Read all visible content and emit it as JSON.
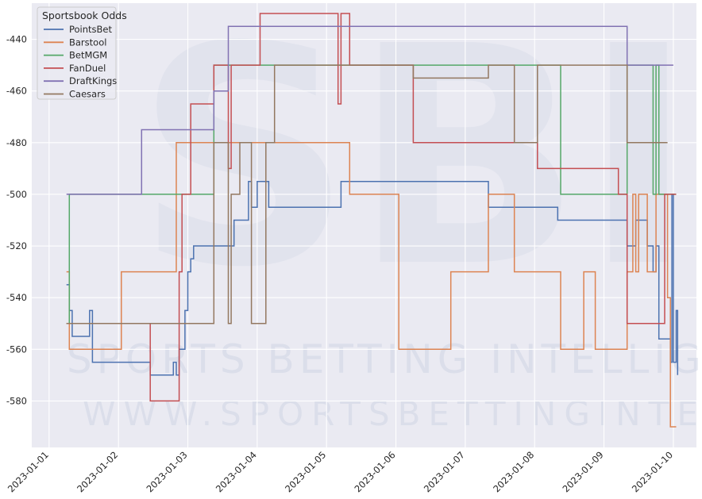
{
  "chart_data": {
    "type": "line",
    "step": true,
    "legend": {
      "title": "Sportsbook Odds",
      "placement": "top-left"
    },
    "watermark": {
      "logo_text": "SBI",
      "line1": "SPORTS BETTING INTELLIGENCE",
      "line2": "WWW.SPORTSBETTINGINTEL.COM"
    },
    "grid": true,
    "background_color": "#eaeaf2",
    "xlim": [
      "2023-01-00 18:00",
      "2023-01-10 08:00"
    ],
    "ylim": [
      -598,
      -426
    ],
    "x_ticks": [
      "2023-01-01",
      "2023-01-02",
      "2023-01-03",
      "2023-01-04",
      "2023-01-05",
      "2023-01-06",
      "2023-01-07",
      "2023-01-08",
      "2023-01-09",
      "2023-01-10"
    ],
    "y_ticks": [
      -440,
      -460,
      -480,
      -500,
      -520,
      -540,
      -560,
      -580
    ],
    "series": [
      {
        "name": "PointsBet",
        "color": "#4c72b0",
        "points": [
          [
            "2023-01-01 06:00",
            -535
          ],
          [
            "2023-01-01 07:00",
            -545
          ],
          [
            "2023-01-01 08:00",
            -555
          ],
          [
            "2023-01-01 14:00",
            -545
          ],
          [
            "2023-01-01 15:00",
            -565
          ],
          [
            "2023-01-02 10:00",
            -565
          ],
          [
            "2023-01-02 11:00",
            -570
          ],
          [
            "2023-01-02 18:00",
            -570
          ],
          [
            "2023-01-02 19:00",
            -565
          ],
          [
            "2023-01-02 20:00",
            -570
          ],
          [
            "2023-01-02 21:00",
            -560
          ],
          [
            "2023-01-02 23:00",
            -545
          ],
          [
            "2023-01-03 00:00",
            -530
          ],
          [
            "2023-01-03 01:00",
            -525
          ],
          [
            "2023-01-03 02:00",
            -520
          ],
          [
            "2023-01-03 15:00",
            -520
          ],
          [
            "2023-01-03 16:00",
            -510
          ],
          [
            "2023-01-03 20:00",
            -510
          ],
          [
            "2023-01-03 21:00",
            -495
          ],
          [
            "2023-01-03 22:00",
            -505
          ],
          [
            "2023-01-03 23:00",
            -505
          ],
          [
            "2023-01-04 00:00",
            -495
          ],
          [
            "2023-01-04 03:00",
            -495
          ],
          [
            "2023-01-04 04:00",
            -505
          ],
          [
            "2023-01-05 04:00",
            -505
          ],
          [
            "2023-01-05 05:00",
            -495
          ],
          [
            "2023-01-07 07:00",
            -495
          ],
          [
            "2023-01-07 08:00",
            -505
          ],
          [
            "2023-01-08 07:00",
            -505
          ],
          [
            "2023-01-08 08:00",
            -510
          ],
          [
            "2023-01-09 07:00",
            -510
          ],
          [
            "2023-01-09 08:00",
            -520
          ],
          [
            "2023-01-09 10:00",
            -520
          ],
          [
            "2023-01-09 11:00",
            -510
          ],
          [
            "2023-01-09 14:00",
            -510
          ],
          [
            "2023-01-09 15:00",
            -520
          ],
          [
            "2023-01-09 17:00",
            -530
          ],
          [
            "2023-01-09 18:00",
            -520
          ],
          [
            "2023-01-09 19:00",
            -556
          ],
          [
            "2023-01-09 22:00",
            -556
          ],
          [
            "2023-01-09 23:00",
            -565
          ],
          [
            "2023-01-09 23:30",
            -500
          ],
          [
            "2023-01-10 00:00",
            -565
          ],
          [
            "2023-01-10 01:00",
            -545
          ],
          [
            "2023-01-10 01:30",
            -570
          ]
        ]
      },
      {
        "name": "Barstool",
        "color": "#dd8452",
        "points": [
          [
            "2023-01-01 06:00",
            -530
          ],
          [
            "2023-01-01 07:00",
            -560
          ],
          [
            "2023-01-02 00:00",
            -560
          ],
          [
            "2023-01-02 01:00",
            -530
          ],
          [
            "2023-01-02 08:00",
            -530
          ],
          [
            "2023-01-02 20:00",
            -480
          ],
          [
            "2023-01-05 07:00",
            -480
          ],
          [
            "2023-01-05 08:00",
            -500
          ],
          [
            "2023-01-06 00:00",
            -500
          ],
          [
            "2023-01-06 01:00",
            -560
          ],
          [
            "2023-01-06 18:00",
            -560
          ],
          [
            "2023-01-06 19:00",
            -530
          ],
          [
            "2023-01-07 07:00",
            -530
          ],
          [
            "2023-01-07 08:00",
            -500
          ],
          [
            "2023-01-07 16:00",
            -500
          ],
          [
            "2023-01-07 17:00",
            -530
          ],
          [
            "2023-01-08 08:00",
            -530
          ],
          [
            "2023-01-08 09:00",
            -560
          ],
          [
            "2023-01-08 16:00",
            -560
          ],
          [
            "2023-01-08 17:00",
            -530
          ],
          [
            "2023-01-08 20:00",
            -530
          ],
          [
            "2023-01-08 21:00",
            -560
          ],
          [
            "2023-01-09 07:00",
            -560
          ],
          [
            "2023-01-09 08:00",
            -530
          ],
          [
            "2023-01-09 10:00",
            -500
          ],
          [
            "2023-01-09 11:00",
            -530
          ],
          [
            "2023-01-09 12:00",
            -500
          ],
          [
            "2023-01-09 14:00",
            -500
          ],
          [
            "2023-01-09 15:00",
            -530
          ],
          [
            "2023-01-09 17:00",
            -530
          ],
          [
            "2023-01-09 18:00",
            -500
          ],
          [
            "2023-01-09 20:00",
            -500
          ],
          [
            "2023-01-09 22:00",
            -540
          ],
          [
            "2023-01-09 23:00",
            -590
          ],
          [
            "2023-01-10 01:00",
            -590
          ]
        ]
      },
      {
        "name": "BetMGM",
        "color": "#55a868",
        "points": [
          [
            "2023-01-01 06:00",
            -550
          ],
          [
            "2023-01-01 07:00",
            -500
          ],
          [
            "2023-01-03 08:00",
            -500
          ],
          [
            "2023-01-03 09:00",
            -450
          ],
          [
            "2023-01-08 08:00",
            -450
          ],
          [
            "2023-01-08 09:00",
            -500
          ],
          [
            "2023-01-09 07:00",
            -500
          ],
          [
            "2023-01-09 08:00",
            -450
          ],
          [
            "2023-01-09 16:00",
            -450
          ],
          [
            "2023-01-09 17:00",
            -500
          ],
          [
            "2023-01-09 18:00",
            -450
          ],
          [
            "2023-01-09 19:00",
            -500
          ],
          [
            "2023-01-10 01:00",
            -500
          ]
        ]
      },
      {
        "name": "FanDuel",
        "color": "#c44e52",
        "points": [
          [
            "2023-01-01 06:00",
            -550
          ],
          [
            "2023-01-02 10:00",
            -550
          ],
          [
            "2023-01-02 11:00",
            -580
          ],
          [
            "2023-01-02 20:00",
            -580
          ],
          [
            "2023-01-02 21:00",
            -530
          ],
          [
            "2023-01-02 22:00",
            -500
          ],
          [
            "2023-01-03 00:00",
            -500
          ],
          [
            "2023-01-03 01:00",
            -465
          ],
          [
            "2023-01-03 08:00",
            -465
          ],
          [
            "2023-01-03 09:00",
            -450
          ],
          [
            "2023-01-03 13:00",
            -450
          ],
          [
            "2023-01-03 14:00",
            -490
          ],
          [
            "2023-01-03 15:00",
            -450
          ],
          [
            "2023-01-04 00:00",
            -450
          ],
          [
            "2023-01-04 01:00",
            -430
          ],
          [
            "2023-01-05 00:00",
            -430
          ],
          [
            "2023-01-05 04:00",
            -465
          ],
          [
            "2023-01-05 05:00",
            -430
          ],
          [
            "2023-01-05 07:00",
            -430
          ],
          [
            "2023-01-05 08:00",
            -450
          ],
          [
            "2023-01-06 05:00",
            -450
          ],
          [
            "2023-01-06 06:00",
            -480
          ],
          [
            "2023-01-08 00:00",
            -480
          ],
          [
            "2023-01-08 01:00",
            -490
          ],
          [
            "2023-01-09 04:00",
            -490
          ],
          [
            "2023-01-09 05:00",
            -500
          ],
          [
            "2023-01-09 07:00",
            -500
          ],
          [
            "2023-01-09 08:00",
            -550
          ],
          [
            "2023-01-09 20:00",
            -550
          ],
          [
            "2023-01-09 21:00",
            -500
          ],
          [
            "2023-01-10 01:00",
            -500
          ]
        ]
      },
      {
        "name": "DraftKings",
        "color": "#8172b3",
        "points": [
          [
            "2023-01-01 06:00",
            -500
          ],
          [
            "2023-01-02 07:00",
            -500
          ],
          [
            "2023-01-02 08:00",
            -475
          ],
          [
            "2023-01-03 08:00",
            -475
          ],
          [
            "2023-01-03 09:00",
            -460
          ],
          [
            "2023-01-03 10:00",
            -460
          ],
          [
            "2023-01-03 14:00",
            -435
          ],
          [
            "2023-01-09 07:00",
            -435
          ],
          [
            "2023-01-09 08:00",
            -450
          ],
          [
            "2023-01-10 00:00",
            -450
          ]
        ]
      },
      {
        "name": "Caesars",
        "color": "#937860",
        "points": [
          [
            "2023-01-01 06:00",
            -550
          ],
          [
            "2023-01-03 08:00",
            -550
          ],
          [
            "2023-01-03 09:00",
            -480
          ],
          [
            "2023-01-03 13:00",
            -480
          ],
          [
            "2023-01-03 14:00",
            -550
          ],
          [
            "2023-01-03 15:00",
            -500
          ],
          [
            "2023-01-03 16:00",
            -500
          ],
          [
            "2023-01-03 18:00",
            -480
          ],
          [
            "2023-01-03 19:00",
            -480
          ],
          [
            "2023-01-03 22:00",
            -550
          ],
          [
            "2023-01-04 02:00",
            -550
          ],
          [
            "2023-01-04 03:00",
            -480
          ],
          [
            "2023-01-04 06:00",
            -450
          ],
          [
            "2023-01-06 05:00",
            -450
          ],
          [
            "2023-01-06 06:00",
            -455
          ],
          [
            "2023-01-07 07:00",
            -455
          ],
          [
            "2023-01-07 08:00",
            -450
          ],
          [
            "2023-01-07 16:00",
            -450
          ],
          [
            "2023-01-07 17:00",
            -480
          ],
          [
            "2023-01-08 00:00",
            -480
          ],
          [
            "2023-01-08 01:00",
            -450
          ],
          [
            "2023-01-09 07:00",
            -450
          ],
          [
            "2023-01-09 08:00",
            -480
          ],
          [
            "2023-01-09 22:00",
            -480
          ]
        ]
      }
    ]
  }
}
